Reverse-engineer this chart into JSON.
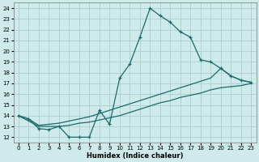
{
  "xlabel": "Humidex (Indice chaleur)",
  "ylabel": "",
  "bg_color": "#ceeaea",
  "grid_color": "#aacfcf",
  "line_color": "#1a6b6b",
  "xlim": [
    -0.5,
    23.5
  ],
  "ylim": [
    11.5,
    24.5
  ],
  "xticks": [
    0,
    1,
    2,
    3,
    4,
    5,
    6,
    7,
    8,
    9,
    10,
    11,
    12,
    13,
    14,
    15,
    16,
    17,
    18,
    19,
    20,
    21,
    22,
    23
  ],
  "yticks": [
    12,
    13,
    14,
    15,
    16,
    17,
    18,
    19,
    20,
    21,
    22,
    23,
    24
  ],
  "line1_x": [
    0,
    1,
    2,
    3,
    4,
    5,
    6,
    7,
    8,
    9,
    10,
    11,
    12,
    13,
    14,
    15,
    16,
    17,
    18,
    19,
    20,
    21,
    22,
    23
  ],
  "line1_y": [
    14.0,
    13.7,
    12.8,
    12.7,
    13.0,
    12.0,
    12.0,
    12.0,
    14.5,
    13.2,
    17.5,
    18.8,
    21.3,
    24.0,
    23.3,
    22.7,
    21.8,
    21.3,
    19.2,
    19.0,
    18.4,
    17.7,
    17.3,
    17.1
  ],
  "line2_x": [
    0,
    1,
    2,
    3,
    4,
    5,
    6,
    7,
    8,
    9,
    10,
    11,
    12,
    13,
    14,
    15,
    16,
    17,
    18,
    19,
    20,
    21,
    22,
    23
  ],
  "line2_y": [
    14.0,
    13.7,
    13.1,
    13.2,
    13.3,
    13.5,
    13.7,
    13.9,
    14.2,
    14.5,
    14.8,
    15.1,
    15.4,
    15.7,
    16.0,
    16.3,
    16.6,
    16.9,
    17.2,
    17.5,
    18.4,
    17.7,
    17.3,
    17.1
  ],
  "line3_x": [
    0,
    1,
    2,
    3,
    4,
    5,
    6,
    7,
    8,
    9,
    10,
    11,
    12,
    13,
    14,
    15,
    16,
    17,
    18,
    19,
    20,
    21,
    22,
    23
  ],
  "line3_y": [
    14.0,
    13.5,
    13.0,
    13.0,
    13.0,
    13.1,
    13.3,
    13.4,
    13.6,
    13.8,
    14.0,
    14.3,
    14.6,
    14.9,
    15.2,
    15.4,
    15.7,
    15.9,
    16.1,
    16.4,
    16.6,
    16.7,
    16.8,
    17.0
  ]
}
